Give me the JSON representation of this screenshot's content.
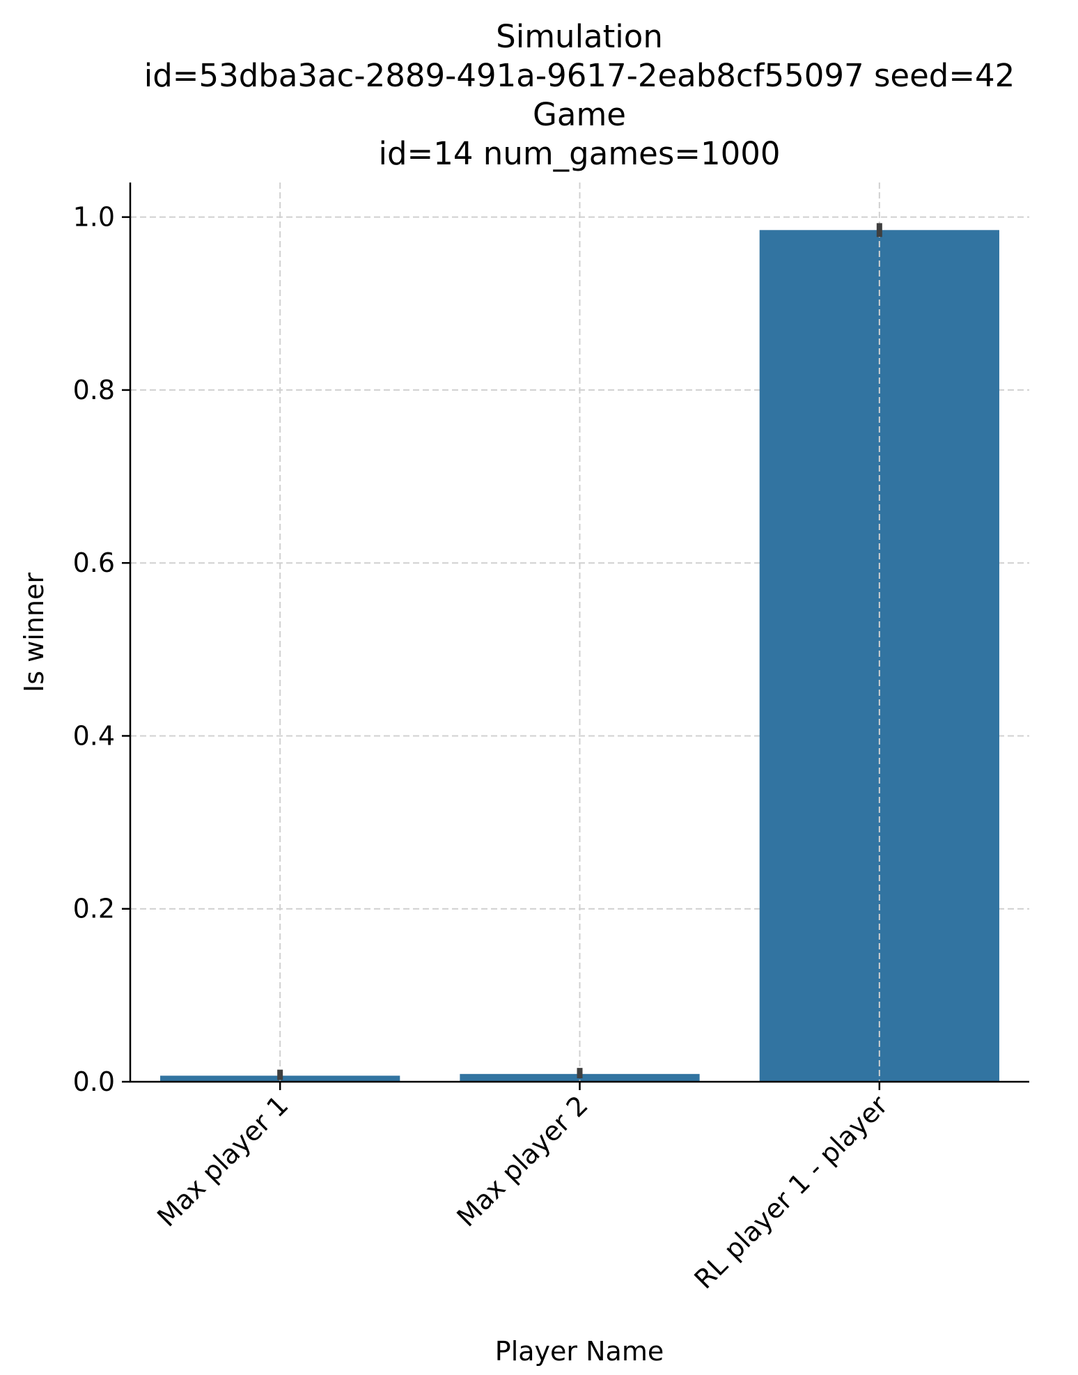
{
  "chart_data": {
    "type": "bar",
    "title_lines": [
      "Simulation",
      "id=53dba3ac-2889-491a-9617-2eab8cf55097 seed=42",
      "Game",
      "id=14 num_games=1000"
    ],
    "xlabel": "Player Name",
    "ylabel": "Is winner",
    "categories": [
      "Max player 1",
      "Max player 2",
      "RL player 1 - player"
    ],
    "values": [
      0.007,
      0.009,
      0.985
    ],
    "error_bars": [
      [
        0.002,
        0.014
      ],
      [
        0.004,
        0.016
      ],
      [
        0.977,
        0.993
      ]
    ],
    "ylim": [
      0,
      1.04
    ],
    "yticks": [
      0.0,
      0.2,
      0.4,
      0.6,
      0.8,
      1.0
    ],
    "ytick_labels": [
      "0.0",
      "0.2",
      "0.4",
      "0.6",
      "0.8",
      "1.0"
    ],
    "grid": true,
    "bar_color": "#3274a1",
    "errorbar_color": "#3f3f3f",
    "grid_color": "#d0d0d0"
  }
}
